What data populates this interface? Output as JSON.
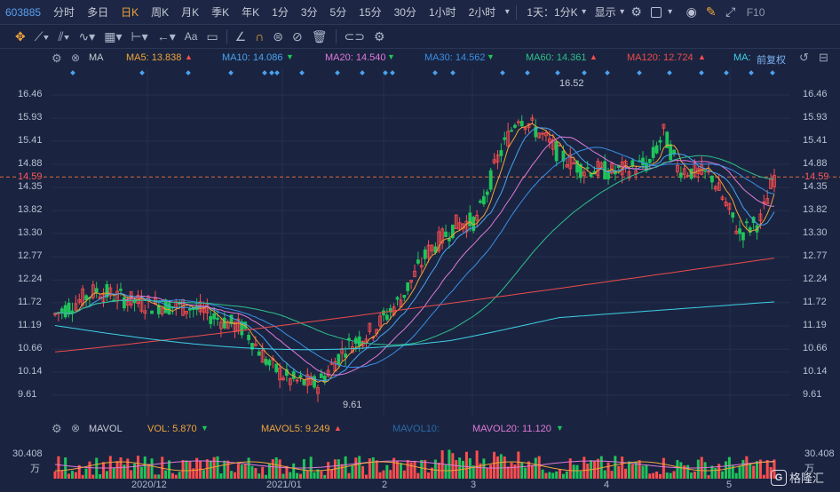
{
  "toolbar": {
    "code": "603885",
    "periods": [
      "分时",
      "多日",
      "日K",
      "周K",
      "月K",
      "季K",
      "年K",
      "1分",
      "3分",
      "5分",
      "15分",
      "30分",
      "1小时",
      "2小时"
    ],
    "active_period": "日K",
    "range_label": "1天：1分K",
    "display_label": "显示",
    "f10_label": "F10"
  },
  "drawing_tools": [
    "move-icon",
    "line-icon",
    "channel-icon",
    "wave-icon",
    "range-icon",
    "arrow-icon",
    "text-icon",
    "comment-icon",
    "ruler-icon",
    "magnet-icon",
    "lock-icon",
    "hide-icon",
    "trash-icon",
    "link-icon",
    "settings-icon"
  ],
  "ma_bar": {
    "label": "MA",
    "ma5": "MA5: 13.838",
    "ma10": "MA10: 14.086",
    "ma20": "MA20: 14.540",
    "ma30": "MA30: 14.562",
    "ma60": "MA60: 14.361",
    "ma120": "MA120: 12.724",
    "ma_more": "MA:",
    "adjust": "前复权"
  },
  "price_axis": {
    "labels": [
      "16.46",
      "15.93",
      "15.41",
      "14.88",
      "14.35",
      "13.82",
      "13.30",
      "12.77",
      "12.24",
      "11.72",
      "11.19",
      "10.66",
      "10.14",
      "9.61"
    ],
    "current": "14.59"
  },
  "annotations": {
    "high": "16.52",
    "low": "9.61"
  },
  "vol_bar": {
    "label": "MAVOL",
    "vol": "VOL: 5.870",
    "mavol5": "MAVOL5: 9.249",
    "mavol10": "MAVOL10:",
    "mavol20": "MAVOL20: 11.120"
  },
  "vol_axis": {
    "top": "30.408",
    "unit": "万"
  },
  "x_axis": [
    "2020/12",
    "2021/01",
    "2",
    "3",
    "4",
    "5"
  ],
  "logo": {
    "text": "格隆汇"
  },
  "colors": {
    "up": "#ff4d4d",
    "down": "#1ec45a",
    "ma5": "#f0a53a",
    "ma10": "#4aa3f0",
    "ma20": "#e07ad8",
    "ma30": "#3a8fe6",
    "ma60": "#2fc08c",
    "ma120": "#ef4b4b",
    "ma250": "#3fd1e6"
  }
}
